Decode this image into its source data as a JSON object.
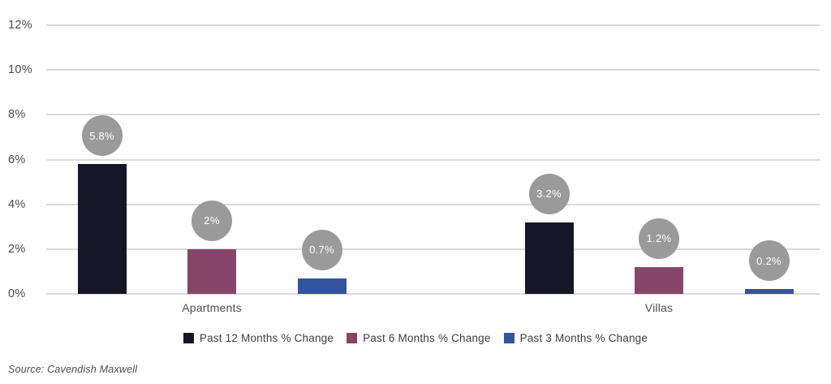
{
  "chart_data": {
    "type": "bar",
    "categories": [
      "Apartments",
      "Villas"
    ],
    "series": [
      {
        "name": "Past 12 Months % Change",
        "color": "#161629",
        "values": [
          5.8,
          3.2
        ]
      },
      {
        "name": "Past 6 Months % Change",
        "color": "#86466a",
        "values": [
          2.0,
          1.2
        ]
      },
      {
        "name": "Past 3 Months % Change",
        "color": "#32549e",
        "values": [
          0.7,
          0.2
        ]
      }
    ],
    "data_labels": [
      [
        "5.8%",
        "2%",
        "0.7%"
      ],
      [
        "3.2%",
        "1.2%",
        "0.2%"
      ]
    ],
    "y_ticks": [
      "12%",
      "10%",
      "8%",
      "6%",
      "4%",
      "2%",
      "0%"
    ],
    "ylim": [
      0,
      12
    ],
    "grid": "horizontal",
    "gridline_color": "#dadada",
    "label_bubble_color": "#9b9a9a",
    "label_text_color": "#ffffff",
    "legend_position": "bottom",
    "title": "",
    "xlabel": "",
    "ylabel": ""
  },
  "source_note": "Source: Cavendish Maxwell"
}
